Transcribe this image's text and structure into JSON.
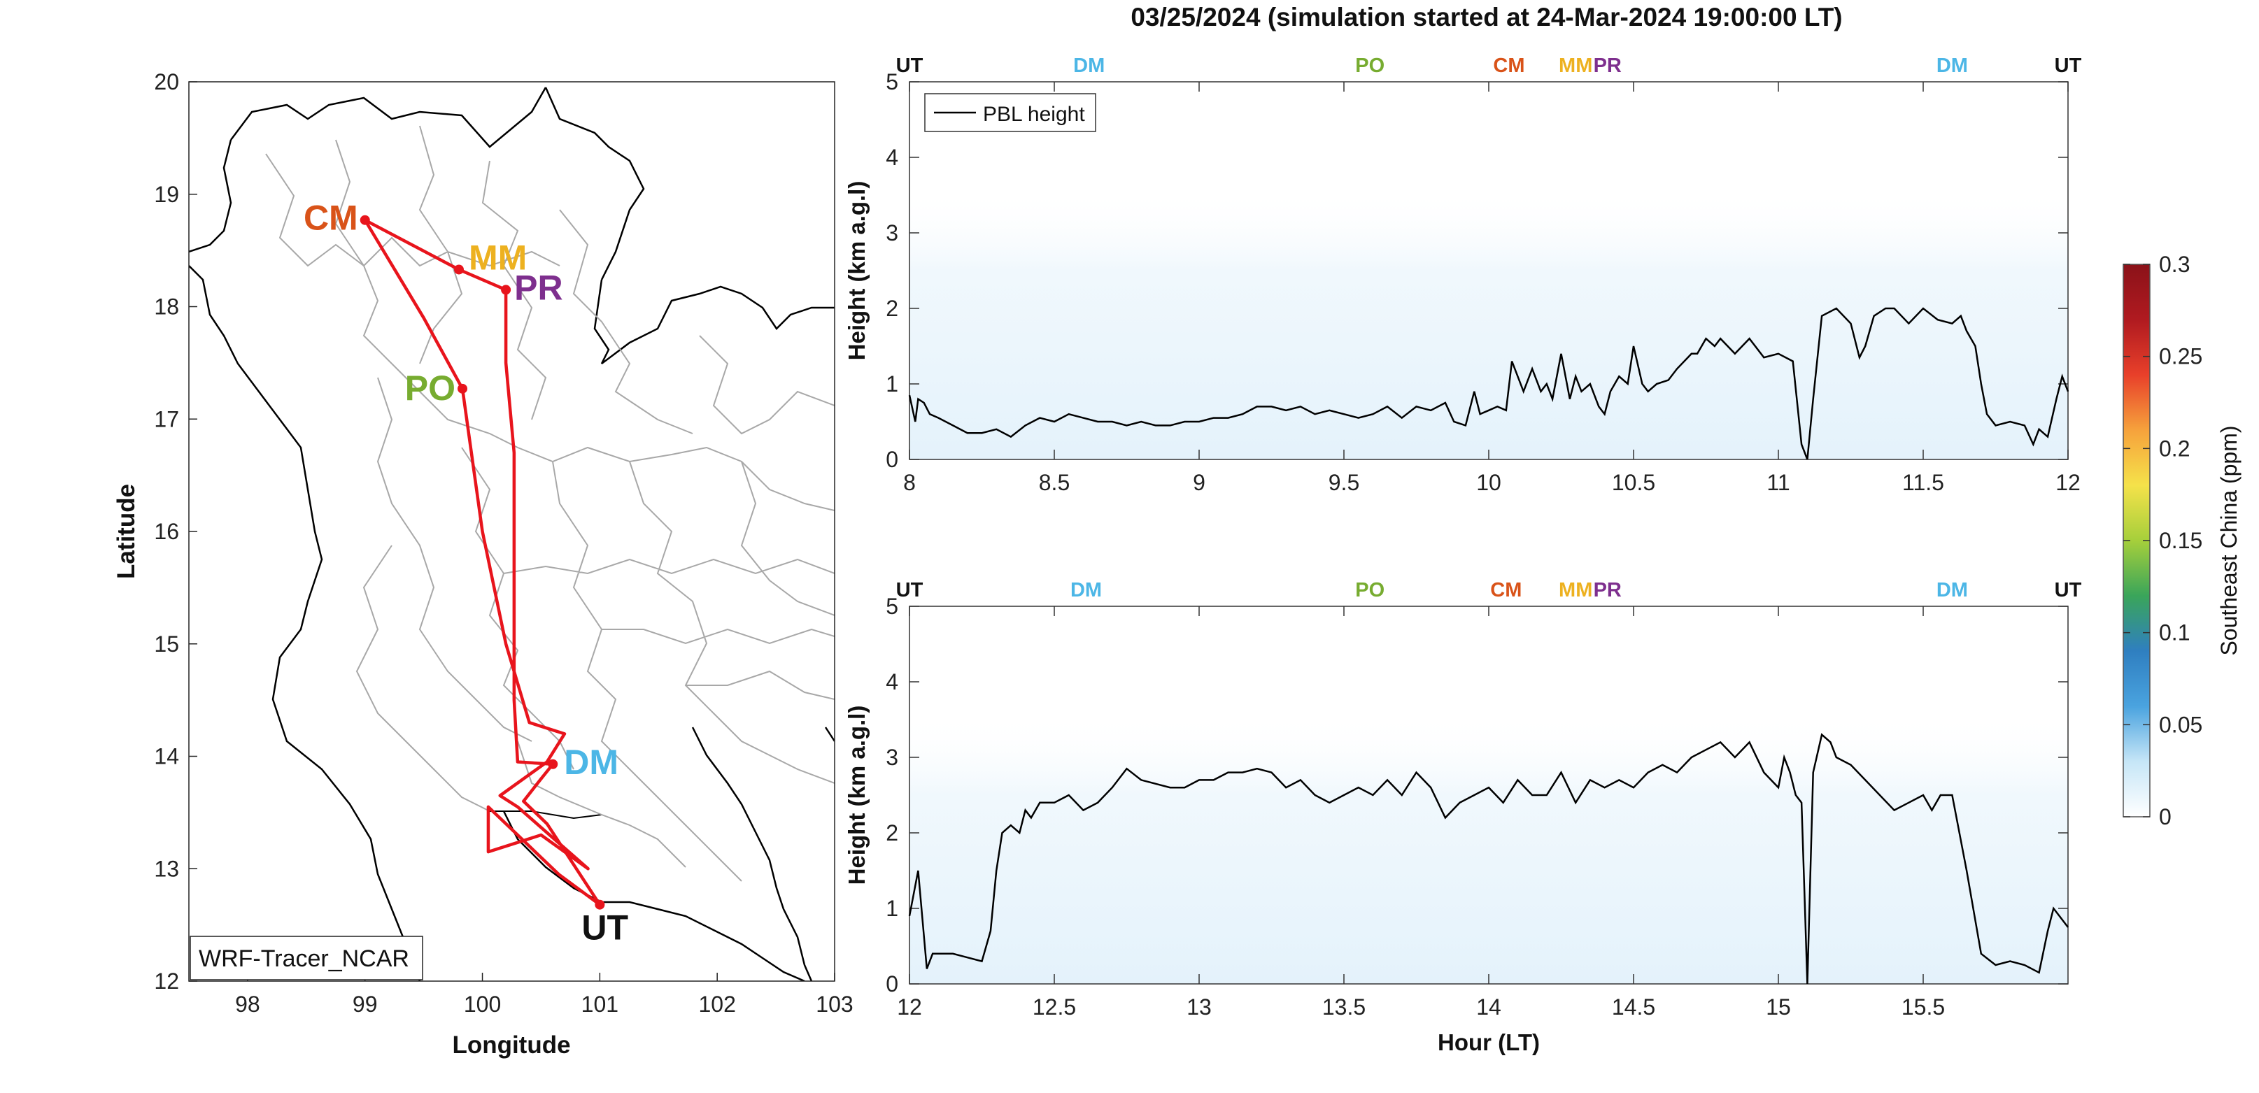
{
  "title": "03/25/2024 (simulation started at 24-Mar-2024 19:00:00 LT)",
  "colors": {
    "route": "#e8141c",
    "UT": "#111111",
    "DM": "#4cb6e6",
    "PO": "#77ac30",
    "CM": "#d95319",
    "MM": "#edb120",
    "PR": "#7e2f8e",
    "pbl_line": "#000000",
    "shading": "#dff0fb"
  },
  "chart_data": [
    {
      "type": "scatter",
      "panel": "map",
      "xlabel": "Longitude",
      "ylabel": "Latitude",
      "xlim": [
        97.5,
        103
      ],
      "ylim": [
        12,
        20
      ],
      "xticks": [
        "98",
        "99",
        "100",
        "101",
        "102",
        "103"
      ],
      "yticks": [
        "12",
        "13",
        "14",
        "15",
        "16",
        "17",
        "18",
        "19",
        "20"
      ],
      "legend": "WRF-Tracer_NCAR",
      "sites": [
        {
          "code": "CM",
          "lon": 99.0,
          "lat": 18.77
        },
        {
          "code": "MM",
          "lon": 99.8,
          "lat": 18.33
        },
        {
          "code": "PR",
          "lon": 100.2,
          "lat": 18.15
        },
        {
          "code": "PO",
          "lon": 99.83,
          "lat": 17.27
        },
        {
          "code": "DM",
          "lon": 100.6,
          "lat": 13.93
        },
        {
          "code": "UT",
          "lon": 101.0,
          "lat": 12.68
        }
      ],
      "route": [
        [
          101.0,
          12.68
        ],
        [
          100.55,
          13.4
        ],
        [
          100.35,
          13.6
        ],
        [
          100.5,
          13.8
        ],
        [
          100.6,
          13.93
        ],
        [
          100.3,
          13.95
        ],
        [
          100.27,
          14.5
        ],
        [
          100.27,
          15.5
        ],
        [
          100.27,
          16.7
        ],
        [
          100.2,
          17.5
        ],
        [
          100.2,
          18.15
        ],
        [
          99.8,
          18.33
        ],
        [
          99.0,
          18.77
        ],
        [
          99.5,
          17.9
        ],
        [
          99.83,
          17.27
        ],
        [
          100.0,
          16.0
        ],
        [
          100.2,
          15.0
        ],
        [
          100.4,
          14.3
        ],
        [
          100.7,
          14.2
        ],
        [
          100.55,
          13.95
        ],
        [
          100.15,
          13.65
        ],
        [
          100.3,
          13.55
        ],
        [
          100.9,
          13.0
        ],
        [
          100.5,
          13.3
        ],
        [
          100.05,
          13.15
        ],
        [
          100.05,
          13.55
        ],
        [
          100.65,
          12.95
        ],
        [
          101.0,
          12.68
        ]
      ]
    },
    {
      "type": "line",
      "panel": "top",
      "ylabel": "Height (km a.g.l)",
      "xlim": [
        8,
        12
      ],
      "ylim": [
        0,
        5
      ],
      "xticks": [
        "8",
        "8.5",
        "9",
        "9.5",
        "10",
        "10.5",
        "11",
        "11.5",
        "12"
      ],
      "yticks": [
        "0",
        "1",
        "2",
        "3",
        "4",
        "5"
      ],
      "legend": "PBL height",
      "series": [
        {
          "name": "PBL height",
          "x": [
            8,
            8.02,
            8.03,
            8.05,
            8.07,
            8.1,
            8.15,
            8.2,
            8.25,
            8.3,
            8.35,
            8.4,
            8.45,
            8.5,
            8.55,
            8.6,
            8.65,
            8.7,
            8.75,
            8.8,
            8.85,
            8.9,
            8.95,
            9.0,
            9.05,
            9.1,
            9.15,
            9.2,
            9.25,
            9.3,
            9.35,
            9.4,
            9.45,
            9.5,
            9.55,
            9.6,
            9.65,
            9.7,
            9.75,
            9.8,
            9.85,
            9.88,
            9.92,
            9.95,
            9.97,
            10.0,
            10.03,
            10.06,
            10.08,
            10.12,
            10.15,
            10.18,
            10.2,
            10.22,
            10.25,
            10.28,
            10.3,
            10.32,
            10.35,
            10.38,
            10.4,
            10.42,
            10.45,
            10.48,
            10.5,
            10.53,
            10.55,
            10.58,
            10.62,
            10.65,
            10.7,
            10.72,
            10.75,
            10.78,
            10.8,
            10.85,
            10.9,
            10.95,
            11.0,
            11.05,
            11.08,
            11.1,
            11.12,
            11.15,
            11.2,
            11.25,
            11.28,
            11.3,
            11.33,
            11.37,
            11.4,
            11.45,
            11.5,
            11.55,
            11.6,
            11.63,
            11.65,
            11.68,
            11.7,
            11.72,
            11.75,
            11.8,
            11.85,
            11.88,
            11.9,
            11.93,
            11.96,
            11.98,
            12.0
          ],
          "y": [
            0.85,
            0.5,
            0.8,
            0.75,
            0.6,
            0.55,
            0.45,
            0.35,
            0.35,
            0.4,
            0.3,
            0.45,
            0.55,
            0.5,
            0.6,
            0.55,
            0.5,
            0.5,
            0.45,
            0.5,
            0.45,
            0.45,
            0.5,
            0.5,
            0.55,
            0.55,
            0.6,
            0.7,
            0.7,
            0.65,
            0.7,
            0.6,
            0.65,
            0.6,
            0.55,
            0.6,
            0.7,
            0.55,
            0.7,
            0.65,
            0.75,
            0.5,
            0.45,
            0.9,
            0.6,
            0.65,
            0.7,
            0.65,
            1.3,
            0.9,
            1.2,
            0.9,
            1.0,
            0.8,
            1.4,
            0.8,
            1.1,
            0.9,
            1.0,
            0.7,
            0.6,
            0.9,
            1.1,
            1.0,
            1.5,
            1.0,
            0.9,
            1.0,
            1.05,
            1.2,
            1.4,
            1.4,
            1.6,
            1.5,
            1.6,
            1.4,
            1.6,
            1.35,
            1.4,
            1.3,
            0.2,
            0.0,
            0.8,
            1.9,
            2.0,
            1.8,
            1.35,
            1.5,
            1.9,
            2.0,
            2.0,
            1.8,
            2.0,
            1.85,
            1.8,
            1.9,
            1.7,
            1.5,
            1.0,
            0.6,
            0.45,
            0.5,
            0.45,
            0.2,
            0.4,
            0.3,
            0.8,
            1.1,
            0.9
          ]
        }
      ]
    },
    {
      "type": "line",
      "panel": "bottom",
      "xlabel": "Hour (LT)",
      "ylabel": "Height (km a.g.l)",
      "xlim": [
        12,
        16
      ],
      "ylim": [
        0,
        5
      ],
      "xticks": [
        "12",
        "12.5",
        "13",
        "13.5",
        "14",
        "14.5",
        "15",
        "15.5"
      ],
      "yticks": [
        "0",
        "1",
        "2",
        "3",
        "4",
        "5"
      ],
      "series": [
        {
          "name": "PBL height",
          "x": [
            12,
            12.03,
            12.06,
            12.08,
            12.1,
            12.12,
            12.15,
            12.2,
            12.25,
            12.28,
            12.3,
            12.32,
            12.35,
            12.38,
            12.4,
            12.42,
            12.45,
            12.5,
            12.55,
            12.6,
            12.65,
            12.7,
            12.75,
            12.8,
            12.85,
            12.9,
            12.95,
            13.0,
            13.05,
            13.1,
            13.15,
            13.2,
            13.25,
            13.3,
            13.35,
            13.4,
            13.45,
            13.5,
            13.55,
            13.6,
            13.65,
            13.7,
            13.75,
            13.8,
            13.85,
            13.9,
            13.95,
            14.0,
            14.05,
            14.1,
            14.15,
            14.2,
            14.25,
            14.3,
            14.35,
            14.4,
            14.45,
            14.5,
            14.55,
            14.6,
            14.65,
            14.7,
            14.75,
            14.8,
            14.85,
            14.9,
            14.95,
            15.0,
            15.02,
            15.04,
            15.06,
            15.08,
            15.09,
            15.1,
            15.12,
            15.15,
            15.18,
            15.2,
            15.25,
            15.3,
            15.35,
            15.4,
            15.45,
            15.5,
            15.53,
            15.56,
            15.6,
            15.65,
            15.7,
            15.75,
            15.8,
            15.85,
            15.9,
            15.93,
            15.95,
            15.97,
            16.0
          ],
          "y": [
            0.9,
            1.5,
            0.2,
            0.4,
            0.4,
            0.4,
            0.4,
            0.35,
            0.3,
            0.7,
            1.5,
            2.0,
            2.1,
            2.0,
            2.3,
            2.2,
            2.4,
            2.4,
            2.5,
            2.3,
            2.4,
            2.6,
            2.85,
            2.7,
            2.65,
            2.6,
            2.6,
            2.7,
            2.7,
            2.8,
            2.8,
            2.85,
            2.8,
            2.6,
            2.7,
            2.5,
            2.4,
            2.5,
            2.6,
            2.5,
            2.7,
            2.5,
            2.8,
            2.6,
            2.2,
            2.4,
            2.5,
            2.6,
            2.4,
            2.7,
            2.5,
            2.5,
            2.8,
            2.4,
            2.7,
            2.6,
            2.7,
            2.6,
            2.8,
            2.9,
            2.8,
            3.0,
            3.1,
            3.2,
            3.0,
            3.2,
            2.8,
            2.6,
            3.0,
            2.8,
            2.5,
            2.4,
            1.2,
            0.0,
            2.8,
            3.3,
            3.2,
            3.0,
            2.9,
            2.7,
            2.5,
            2.3,
            2.4,
            2.5,
            2.3,
            2.5,
            2.5,
            1.5,
            0.4,
            0.25,
            0.3,
            0.25,
            0.15,
            0.7,
            1.0,
            0.9,
            0.75
          ]
        }
      ]
    }
  ],
  "site_markers": {
    "top": [
      {
        "code": "UT",
        "x": 8.0
      },
      {
        "code": "DM",
        "x": 8.62
      },
      {
        "code": "PO",
        "x": 9.59
      },
      {
        "code": "CM",
        "x": 10.07
      },
      {
        "code": "MM",
        "x": 10.3
      },
      {
        "code": "PR",
        "x": 10.41
      },
      {
        "code": "DM",
        "x": 11.6
      },
      {
        "code": "UT",
        "x": 12.0
      }
    ],
    "bottom": [
      {
        "code": "UT",
        "x": 12.0
      },
      {
        "code": "DM",
        "x": 12.61
      },
      {
        "code": "PO",
        "x": 13.59
      },
      {
        "code": "CM",
        "x": 14.06
      },
      {
        "code": "MM",
        "x": 14.3
      },
      {
        "code": "PR",
        "x": 14.41
      },
      {
        "code": "DM",
        "x": 15.6
      },
      {
        "code": "UT",
        "x": 16.0
      }
    ]
  },
  "colorbar": {
    "label": "Southeast China (ppm)",
    "min": 0,
    "max": 0.3,
    "ticks": [
      "0",
      "0.05",
      "0.1",
      "0.15",
      "0.2",
      "0.25",
      "0.3"
    ],
    "colormap": [
      "#ffffff",
      "#c6e6f7",
      "#4aa3df",
      "#2f7fc0",
      "#3aa55a",
      "#a6cf3b",
      "#f5e24a",
      "#f6a23c",
      "#e8402a",
      "#b01a20",
      "#8b1219"
    ]
  }
}
